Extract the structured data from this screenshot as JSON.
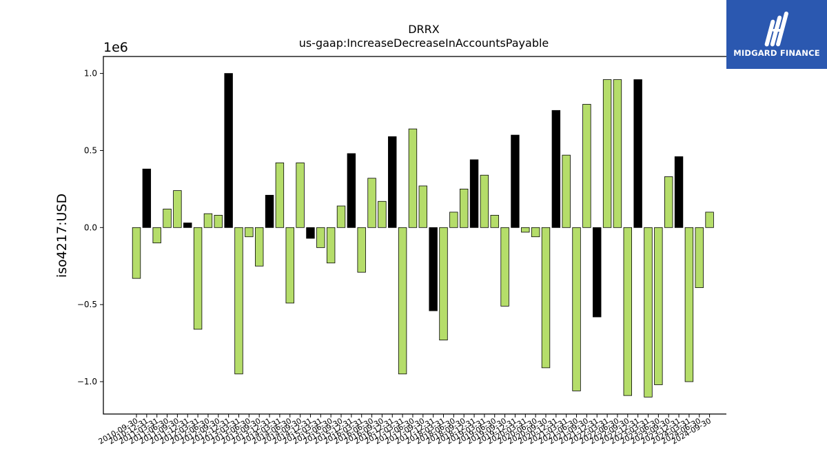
{
  "brand": {
    "name": "MIDGARD FINANCE",
    "logo_color": "#2b58b0"
  },
  "chart_data": {
    "type": "bar",
    "title": "DRRX",
    "subtitle": "us-gaap:IncreaseDecreaseInAccountsPayable",
    "ylabel": "iso4217:USD",
    "xlabel": "",
    "y_offset_label": "1e6",
    "ylim": [
      -1.21,
      1.11
    ],
    "yticks": [
      -1.0,
      -0.5,
      0.0,
      0.5,
      1.0
    ],
    "ytick_labels": [
      "−1.0",
      "−0.5",
      "0.0",
      "0.5",
      "1.0"
    ],
    "colors": {
      "default": "#b5dd6a",
      "highlight": "#000000",
      "edge": "#000000"
    },
    "categories": [
      "2010-09-30",
      "2010-12-31",
      "2011-03-31",
      "2011-06-30",
      "2011-09-30",
      "2011-12-31",
      "2012-03-31",
      "2012-06-30",
      "2012-09-30",
      "2012-12-31",
      "2013-03-31",
      "2013-06-30",
      "2013-09-30",
      "2013-12-31",
      "2014-03-31",
      "2014-06-30",
      "2014-09-30",
      "2014-12-31",
      "2015-03-31",
      "2015-06-30",
      "2015-09-30",
      "2015-12-31",
      "2016-03-31",
      "2016-06-30",
      "2016-09-30",
      "2016-12-31",
      "2017-03-31",
      "2017-06-30",
      "2017-09-30",
      "2017-12-31",
      "2018-03-31",
      "2018-06-30",
      "2018-09-30",
      "2018-12-31",
      "2019-03-31",
      "2019-06-30",
      "2019-09-30",
      "2019-12-31",
      "2020-03-31",
      "2020-06-30",
      "2020-09-30",
      "2020-12-31",
      "2021-03-31",
      "2021-06-30",
      "2021-09-30",
      "2021-12-31",
      "2022-03-31",
      "2022-06-30",
      "2022-09-30",
      "2022-12-31",
      "2023-03-31",
      "2023-06-30",
      "2023-09-30",
      "2023-12-31",
      "2024-03-31",
      "2024-06-30",
      "2024-09-30"
    ],
    "values": [
      -0.33,
      0.38,
      -0.1,
      0.12,
      0.24,
      0.03,
      -0.66,
      0.09,
      0.08,
      1.0,
      -0.95,
      -0.06,
      -0.25,
      0.21,
      0.42,
      -0.49,
      0.42,
      -0.07,
      -0.13,
      -0.23,
      0.14,
      0.48,
      -0.29,
      0.32,
      0.17,
      0.59,
      -0.95,
      0.64,
      0.27,
      -0.54,
      -0.73,
      0.1,
      0.25,
      0.44,
      0.34,
      0.08,
      -0.51,
      0.6,
      -0.03,
      -0.06,
      -0.91,
      0.76,
      0.47,
      -1.06,
      0.8,
      -0.58,
      0.96,
      0.96,
      -1.09,
      0.96,
      -1.1,
      -1.02,
      0.33,
      0.46,
      -1.0,
      -0.39,
      0.1
    ],
    "highlighted": [
      false,
      true,
      false,
      false,
      false,
      true,
      false,
      false,
      false,
      true,
      false,
      false,
      false,
      true,
      false,
      false,
      false,
      true,
      false,
      false,
      false,
      true,
      false,
      false,
      false,
      true,
      false,
      false,
      false,
      true,
      false,
      false,
      false,
      true,
      false,
      false,
      false,
      true,
      false,
      false,
      false,
      true,
      false,
      false,
      false,
      true,
      false,
      false,
      false,
      true,
      false,
      false,
      false,
      true,
      false,
      false,
      false
    ]
  }
}
